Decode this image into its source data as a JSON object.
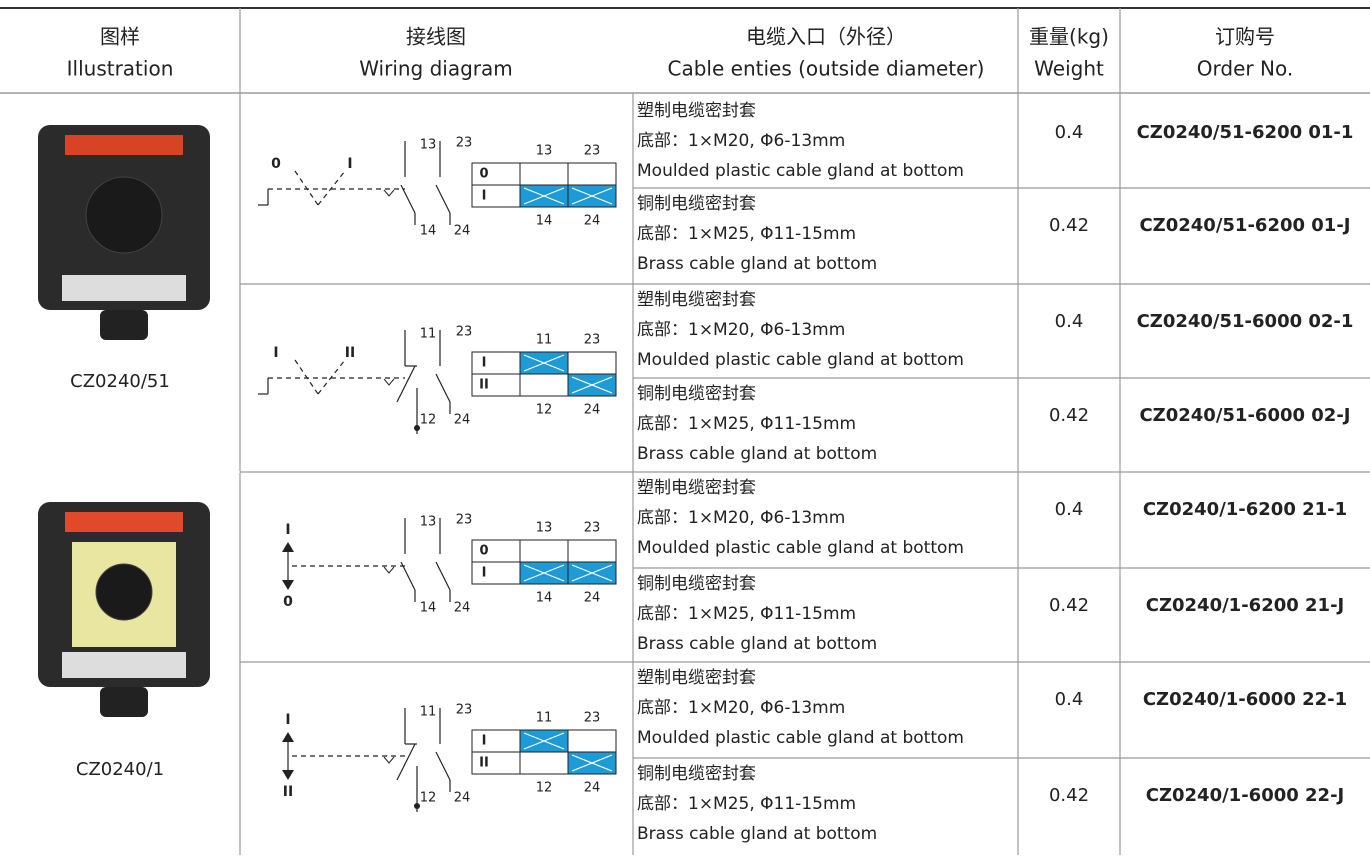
{
  "header": {
    "columns": [
      {
        "zh": "图样",
        "en": "Illustration"
      },
      {
        "zh": "接线图",
        "en": "Wiring diagram"
      },
      {
        "zh": "电缆入口（外径）",
        "en": "Cable enties (outside diameter)"
      },
      {
        "zh": "重量(kg)",
        "en": "Weight"
      },
      {
        "zh": "订购号",
        "en": "Order No."
      }
    ]
  },
  "products": [
    {
      "model": "CZ0240/51"
    },
    {
      "model": "CZ0240/1"
    }
  ],
  "diagrams": [
    {
      "switch_labels": [
        "0",
        "I"
      ],
      "contact_top": [
        "13",
        "23"
      ],
      "contact_bottom": [
        "14",
        "24"
      ],
      "table_top": [
        "13",
        "23"
      ],
      "table_rows": [
        "0",
        "I"
      ],
      "table_bottom": [
        "14",
        "24"
      ]
    },
    {
      "switch_labels": [
        "I",
        "II"
      ],
      "contact_top": [
        "11",
        "23"
      ],
      "contact_bottom": [
        "12",
        "24"
      ],
      "table_top": [
        "11",
        "23"
      ],
      "table_rows": [
        "I",
        "II"
      ],
      "table_bottom": [
        "12",
        "24"
      ]
    },
    {
      "switch_labels": [
        "I",
        "0"
      ],
      "contact_top": [
        "13",
        "23"
      ],
      "contact_bottom": [
        "14",
        "24"
      ],
      "table_top": [
        "13",
        "23"
      ],
      "table_rows": [
        "0",
        "I"
      ],
      "table_bottom": [
        "14",
        "24"
      ]
    },
    {
      "switch_labels": [
        "I",
        "II"
      ],
      "contact_top": [
        "11",
        "23"
      ],
      "contact_bottom": [
        "12",
        "24"
      ],
      "table_top": [
        "11",
        "23"
      ],
      "table_rows": [
        "I",
        "II"
      ],
      "table_bottom": [
        "12",
        "24"
      ]
    }
  ],
  "rows": [
    {
      "cable": [
        "塑制电缆密封套",
        "底部：1×M20, Φ6-13mm",
        "Moulded plastic cable gland at bottom"
      ],
      "weight": 0.4,
      "order": "CZ0240/51-6200 01-1"
    },
    {
      "cable": [
        "铜制电缆密封套",
        "底部：1×M25, Φ11-15mm",
        "Brass cable gland at bottom"
      ],
      "weight": 0.42,
      "order": "CZ0240/51-6200 01-J"
    },
    {
      "cable": [
        "塑制电缆密封套",
        "底部：1×M20, Φ6-13mm",
        "Moulded plastic cable gland at bottom"
      ],
      "weight": 0.4,
      "order": "CZ0240/51-6000 02-1"
    },
    {
      "cable": [
        "铜制电缆密封套",
        "底部：1×M25, Φ11-15mm",
        "Brass cable gland at bottom"
      ],
      "weight": 0.42,
      "order": "CZ0240/51-6000 02-J"
    },
    {
      "cable": [
        "塑制电缆密封套",
        "底部：1×M20, Φ6-13mm",
        "Moulded plastic cable gland at bottom"
      ],
      "weight": 0.4,
      "order": "CZ0240/1-6200 21-1"
    },
    {
      "cable": [
        "铜制电缆密封套",
        "底部：1×M25, Φ11-15mm",
        "Brass cable gland at bottom"
      ],
      "weight": 0.42,
      "order": "CZ0240/1-6200 21-J"
    },
    {
      "cable": [
        "塑制电缆密封套",
        "底部：1×M20, Φ6-13mm",
        "Moulded plastic cable gland at bottom"
      ],
      "weight": 0.4,
      "order": "CZ0240/1-6000 22-1"
    },
    {
      "cable": [
        "铜制电缆密封套",
        "底部：1×M25, Φ11-15mm",
        "Brass cable gland at bottom"
      ],
      "weight": 0.42,
      "order": "CZ0240/1-6000 22-J"
    }
  ]
}
